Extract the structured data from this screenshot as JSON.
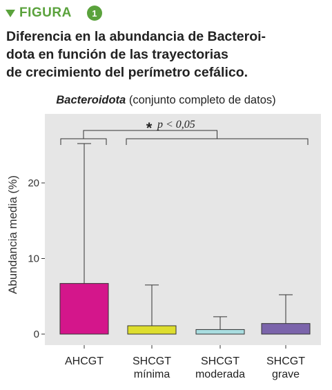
{
  "figure": {
    "label": "FIGURA",
    "number": "1",
    "accent_color": "#5aa23c"
  },
  "heading": {
    "lines": [
      "Diferencia en la abundancia de Bacteroi-",
      "dota en función de las trayectorias",
      "de crecimiento del perímetro cefálico."
    ]
  },
  "chart_data": {
    "type": "bar",
    "title_emphasis": "Bacteroidota",
    "title_rest": " (conjunto completo de datos)",
    "ylabel": "Abundancia media (%)",
    "xlabel": "",
    "ylim": [
      0,
      28.7
    ],
    "yticks": [
      0,
      10,
      20
    ],
    "grid": false,
    "background": "#e6e6e6",
    "categories": [
      [
        "AHCGT"
      ],
      [
        "SHCGT",
        "mínima"
      ],
      [
        "SHCGT",
        "moderada"
      ],
      [
        "SHCGT",
        "grave"
      ]
    ],
    "values": [
      6.7,
      1.1,
      0.6,
      1.4
    ],
    "error_upper": [
      25.2,
      6.5,
      2.3,
      5.2
    ],
    "colors": [
      "#d4168b",
      "#dede2e",
      "#a9dde0",
      "#7b64ab"
    ],
    "significance": {
      "star": "*",
      "text": "p < 0,05",
      "left_group": [
        0
      ],
      "right_group": [
        1,
        2,
        3
      ]
    }
  }
}
